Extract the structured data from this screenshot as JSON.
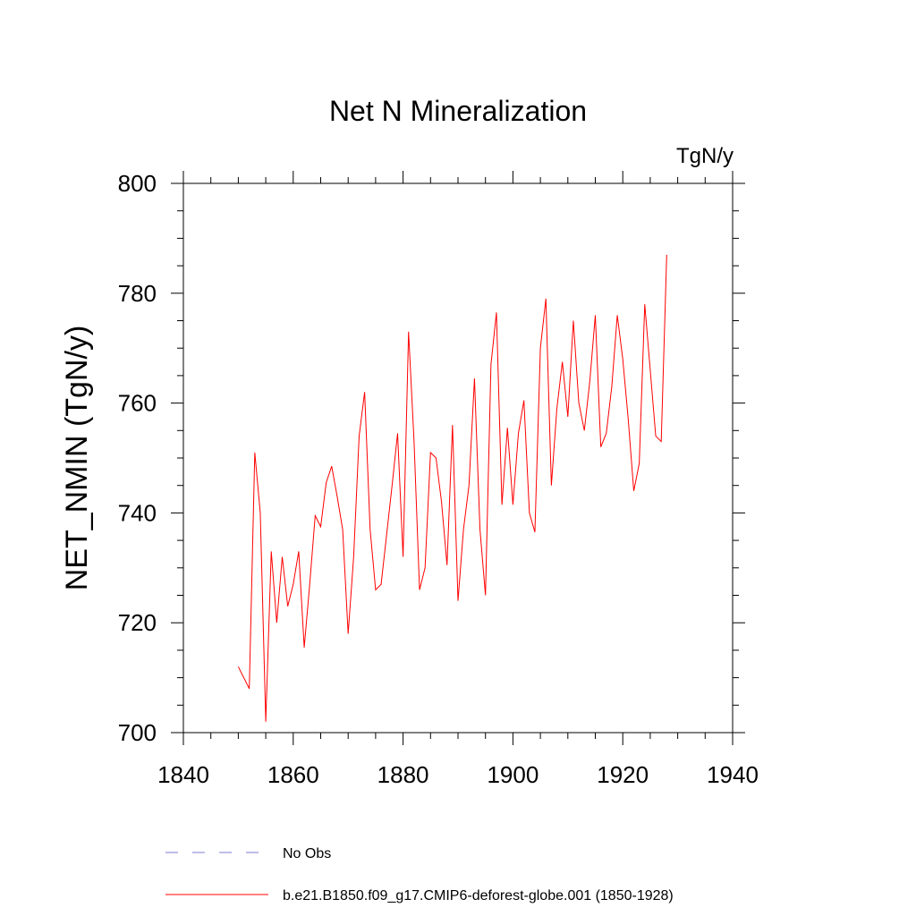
{
  "chart_data": {
    "type": "line",
    "title": "Net N Mineralization",
    "units": "TgN/y",
    "ylabel": "NET_NMIN  (TgN/y)",
    "xlabel": "",
    "xlim": [
      1840,
      1940
    ],
    "ylim": [
      700,
      800
    ],
    "xticks": [
      1840,
      1860,
      1880,
      1900,
      1920,
      1940
    ],
    "yticks": [
      700,
      720,
      740,
      760,
      780,
      800
    ],
    "grid": false,
    "legend_position": "bottom-left",
    "legend": [
      {
        "label": "No Obs",
        "style": "dashed",
        "color": "#7b7bd6"
      },
      {
        "label": "b.e21.B1850.f09_g17.CMIP6-deforest-globe.001 (1850-1928)",
        "style": "solid",
        "color": "#ff0000"
      }
    ],
    "series": [
      {
        "name": "b.e21.B1850.f09_g17.CMIP6-deforest-globe.001 (1850-1928)",
        "color": "#ff0000",
        "x": [
          1850,
          1851,
          1852,
          1853,
          1854,
          1855,
          1856,
          1857,
          1858,
          1859,
          1860,
          1861,
          1862,
          1863,
          1864,
          1865,
          1866,
          1867,
          1868,
          1869,
          1870,
          1871,
          1872,
          1873,
          1874,
          1875,
          1876,
          1877,
          1878,
          1879,
          1880,
          1881,
          1882,
          1883,
          1884,
          1885,
          1886,
          1887,
          1888,
          1889,
          1890,
          1891,
          1892,
          1893,
          1894,
          1895,
          1896,
          1897,
          1898,
          1899,
          1900,
          1901,
          1902,
          1903,
          1904,
          1905,
          1906,
          1907,
          1908,
          1909,
          1910,
          1911,
          1912,
          1913,
          1914,
          1915,
          1916,
          1917,
          1918,
          1919,
          1920,
          1921,
          1922,
          1923,
          1924,
          1925,
          1926,
          1927,
          1928
        ],
        "values": [
          712,
          710,
          708,
          751,
          740,
          702,
          733,
          720,
          732,
          723,
          727,
          733,
          715.5,
          727,
          739.5,
          737.5,
          745.5,
          748.5,
          743,
          737,
          718,
          732,
          754,
          762,
          737,
          726,
          727,
          736,
          745,
          754.5,
          732,
          773,
          753,
          726,
          730,
          751,
          750,
          742,
          730.5,
          756,
          724,
          737,
          745,
          764.5,
          737,
          725,
          767,
          776.5,
          741.5,
          755.5,
          741.5,
          754.5,
          760.5,
          740,
          736.5,
          770,
          779,
          745,
          759,
          767.5,
          757.5,
          775,
          760,
          755,
          764,
          776,
          752,
          754.5,
          763,
          776,
          768,
          757,
          744,
          749,
          778,
          766,
          754,
          753,
          787
        ]
      }
    ]
  }
}
